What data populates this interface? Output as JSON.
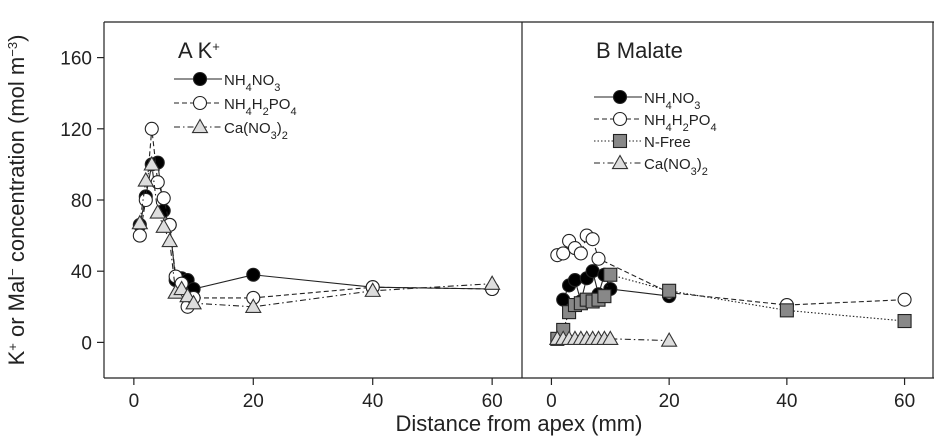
{
  "chart_data": [
    {
      "type": "line",
      "panel_letter": "A",
      "panel_ion": "K",
      "panel_ion_sup": "+",
      "x_label": "Distance from apex (mm)",
      "y_label": "K+ or Mal- concentration (mol m-3)",
      "xlim": [
        -5,
        65
      ],
      "ylim": [
        -20,
        180
      ],
      "x_ticks": [
        0,
        20,
        40,
        60
      ],
      "y_ticks": [
        0,
        40,
        80,
        120,
        160
      ],
      "grid": false,
      "legend_position": "top-left",
      "series": [
        {
          "name_parts": [
            "NH",
            "4",
            "NO",
            "3",
            ""
          ],
          "marker": "circle",
          "fill": "#000000",
          "line": "solid",
          "x": [
            1,
            2,
            3,
            4,
            5,
            6,
            7,
            8,
            9,
            10,
            20,
            40,
            60
          ],
          "y": [
            66,
            82,
            100,
            101,
            74,
            66,
            35,
            36,
            35,
            30,
            38,
            31,
            30
          ]
        },
        {
          "name_parts": [
            "NH",
            "4",
            "H",
            "2",
            "PO",
            "4"
          ],
          "marker": "circle",
          "fill": "#ffffff",
          "line": "dashed",
          "x": [
            1,
            2,
            3,
            4,
            5,
            6,
            7,
            8,
            9,
            10,
            20,
            40,
            60
          ],
          "y": [
            60,
            80,
            120,
            90,
            81,
            66,
            37,
            33,
            20,
            25,
            25,
            31,
            30
          ]
        },
        {
          "name_parts": [
            "Ca(NO",
            "3",
            ")",
            "2",
            ""
          ],
          "marker": "triangle",
          "fill": "#dddddd",
          "line": "dashdot",
          "x": [
            1,
            2,
            3,
            4,
            5,
            6,
            7,
            8,
            9,
            10,
            20,
            40,
            60
          ],
          "y": [
            67,
            91,
            100,
            73,
            65,
            57,
            28,
            30,
            26,
            22,
            20,
            29,
            33
          ]
        }
      ]
    },
    {
      "type": "line",
      "panel_letter": "B",
      "panel_title": "Malate",
      "xlim": [
        -5,
        65
      ],
      "ylim": [
        -20,
        180
      ],
      "x_ticks": [
        0,
        20,
        40,
        60
      ],
      "grid": false,
      "legend_position": "top-left",
      "series": [
        {
          "name_parts": [
            "NH",
            "4",
            "NO",
            "3",
            ""
          ],
          "marker": "circle",
          "fill": "#000000",
          "line": "solid",
          "x": [
            2,
            3,
            4,
            5,
            6,
            7,
            8,
            9,
            10,
            20
          ],
          "y": [
            24,
            32,
            35,
            23,
            36,
            40,
            27,
            38,
            30,
            26
          ]
        },
        {
          "name_parts": [
            "NH",
            "4",
            "H",
            "2",
            "PO",
            "4"
          ],
          "marker": "circle",
          "fill": "#ffffff",
          "line": "dashed",
          "x": [
            1,
            2,
            3,
            4,
            5,
            6,
            7,
            8,
            20,
            40,
            60
          ],
          "y": [
            49,
            50,
            57,
            53,
            50,
            60,
            58,
            47,
            28,
            21,
            24
          ]
        },
        {
          "name_parts": [
            "N-Free"
          ],
          "marker": "square",
          "fill": "#888888",
          "line": "dotted",
          "x": [
            1,
            2,
            3,
            4,
            5,
            6,
            7,
            8,
            9,
            10,
            20,
            40,
            60
          ],
          "y": [
            2,
            7,
            17,
            21,
            22,
            24,
            23,
            24,
            26,
            38,
            29,
            18,
            12
          ]
        },
        {
          "name_parts": [
            "Ca(NO",
            "3",
            ")",
            "2",
            ""
          ],
          "marker": "triangle",
          "fill": "#dddddd",
          "line": "dashdot",
          "x": [
            1,
            2,
            3,
            4,
            5,
            6,
            7,
            8,
            9,
            10,
            20
          ],
          "y": [
            2,
            2,
            2,
            2,
            2,
            2,
            2,
            2,
            2,
            2,
            1
          ]
        }
      ]
    }
  ]
}
